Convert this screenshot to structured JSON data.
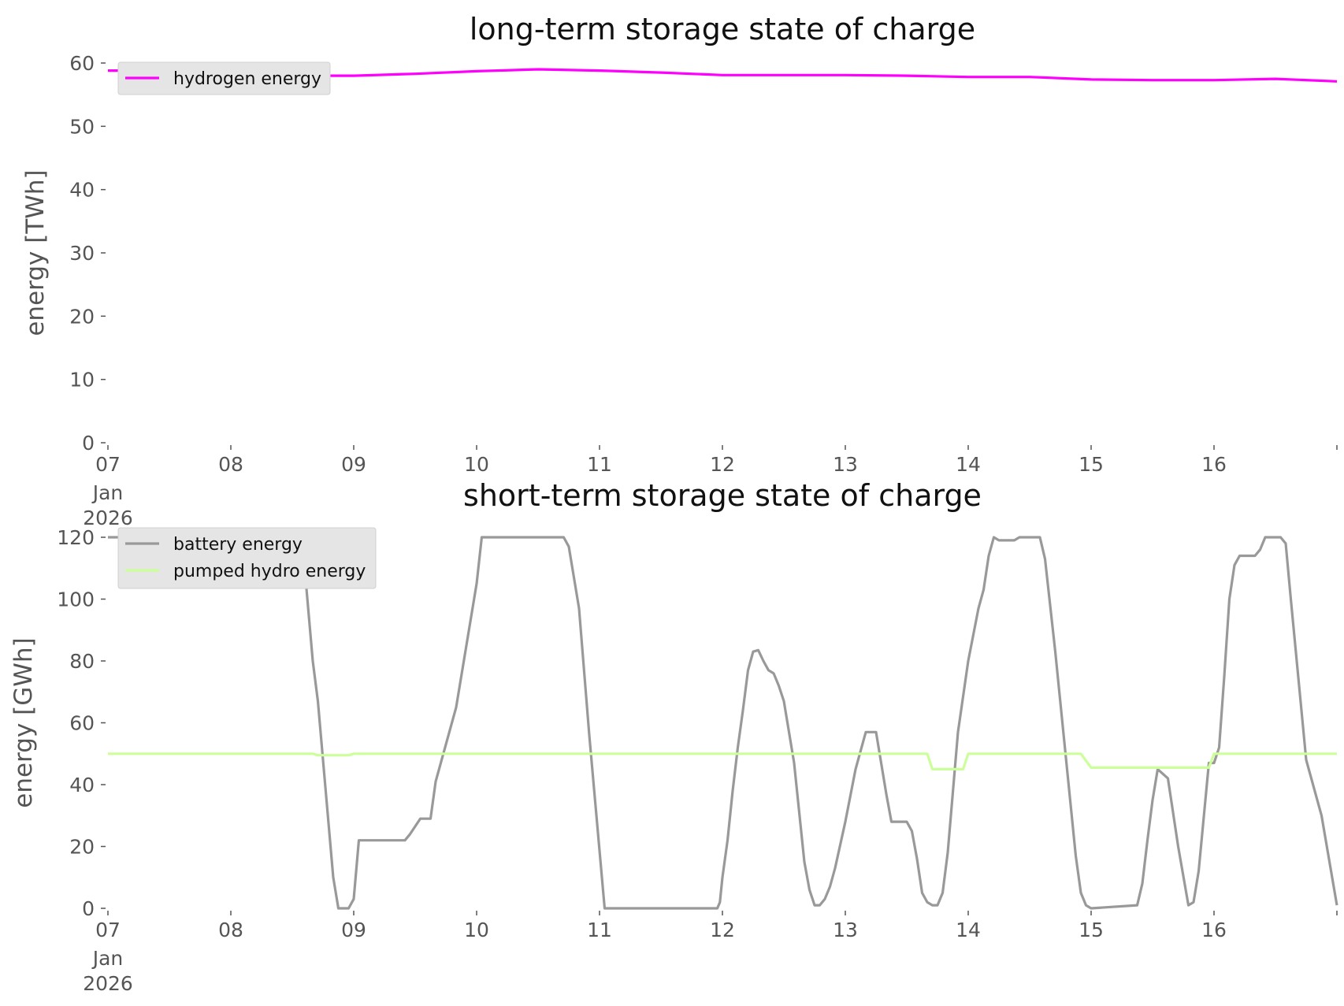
{
  "chart_data": [
    {
      "type": "line",
      "title": "long-term storage state of charge",
      "xlabel": "",
      "ylabel": "energy [TWh]",
      "ylim": [
        0,
        60
      ],
      "yticks": [
        0,
        10,
        20,
        30,
        40,
        50,
        60
      ],
      "xlim": [
        "2026-01-07",
        "2026-01-17"
      ],
      "xticks": [
        {
          "date": "2026-01-07",
          "label": "07",
          "sub": [
            "Jan",
            "2026"
          ]
        },
        {
          "date": "2026-01-08",
          "label": "08"
        },
        {
          "date": "2026-01-09",
          "label": "09"
        },
        {
          "date": "2026-01-10",
          "label": "10"
        },
        {
          "date": "2026-01-11",
          "label": "11"
        },
        {
          "date": "2026-01-12",
          "label": "12"
        },
        {
          "date": "2026-01-13",
          "label": "13"
        },
        {
          "date": "2026-01-14",
          "label": "14"
        },
        {
          "date": "2026-01-15",
          "label": "15"
        },
        {
          "date": "2026-01-16",
          "label": "16"
        },
        {
          "date": "2026-01-17",
          "label": ""
        }
      ],
      "grid": false,
      "legend_position": "top-left",
      "series": [
        {
          "name": "hydrogen energy",
          "color": "#ff00ff",
          "points": [
            [
              "2026-01-07T00:00",
              58.8
            ],
            [
              "2026-01-07T12:00",
              58.8
            ],
            [
              "2026-01-08T00:00",
              58.9
            ],
            [
              "2026-01-08T12:00",
              58.7
            ],
            [
              "2026-01-08T18:00",
              58.0
            ],
            [
              "2026-01-09T00:00",
              58.0
            ],
            [
              "2026-01-09T12:00",
              58.3
            ],
            [
              "2026-01-10T00:00",
              58.7
            ],
            [
              "2026-01-10T12:00",
              59.0
            ],
            [
              "2026-01-11T00:00",
              58.8
            ],
            [
              "2026-01-11T12:00",
              58.5
            ],
            [
              "2026-01-12T00:00",
              58.1
            ],
            [
              "2026-01-12T12:00",
              58.1
            ],
            [
              "2026-01-13T00:00",
              58.1
            ],
            [
              "2026-01-13T12:00",
              58.0
            ],
            [
              "2026-01-14T00:00",
              57.8
            ],
            [
              "2026-01-14T12:00",
              57.8
            ],
            [
              "2026-01-15T00:00",
              57.4
            ],
            [
              "2026-01-15T12:00",
              57.3
            ],
            [
              "2026-01-16T00:00",
              57.3
            ],
            [
              "2026-01-16T12:00",
              57.5
            ],
            [
              "2026-01-17T00:00",
              57.1
            ]
          ]
        }
      ]
    },
    {
      "type": "line",
      "title": "short-term storage state of charge",
      "xlabel": "",
      "ylabel": "energy [GWh]",
      "ylim": [
        0,
        120
      ],
      "yticks": [
        0,
        20,
        40,
        60,
        80,
        100,
        120
      ],
      "xlim": [
        "2026-01-07",
        "2026-01-17"
      ],
      "xticks": [
        {
          "date": "2026-01-07",
          "label": "07",
          "sub": [
            "Jan",
            "2026"
          ]
        },
        {
          "date": "2026-01-08",
          "label": "08"
        },
        {
          "date": "2026-01-09",
          "label": "09"
        },
        {
          "date": "2026-01-10",
          "label": "10"
        },
        {
          "date": "2026-01-11",
          "label": "11"
        },
        {
          "date": "2026-01-12",
          "label": "12"
        },
        {
          "date": "2026-01-13",
          "label": "13"
        },
        {
          "date": "2026-01-14",
          "label": "14"
        },
        {
          "date": "2026-01-15",
          "label": "15"
        },
        {
          "date": "2026-01-16",
          "label": "16"
        },
        {
          "date": "2026-01-17",
          "label": ""
        }
      ],
      "grid": false,
      "legend_position": "top-left",
      "series": [
        {
          "name": "battery energy",
          "color": "#999999",
          "points": [
            [
              "2026-01-07T00:00",
              120
            ],
            [
              "2026-01-08T12:00",
              120
            ],
            [
              "2026-01-08T14:00",
              118
            ],
            [
              "2026-01-08T16:00",
              80
            ],
            [
              "2026-01-08T17:00",
              67
            ],
            [
              "2026-01-08T20:00",
              10
            ],
            [
              "2026-01-08T21:00",
              0
            ],
            [
              "2026-01-08T23:00",
              0
            ],
            [
              "2026-01-09T00:00",
              3
            ],
            [
              "2026-01-09T01:00",
              22
            ],
            [
              "2026-01-09T10:00",
              22
            ],
            [
              "2026-01-09T11:00",
              24
            ],
            [
              "2026-01-09T13:00",
              29
            ],
            [
              "2026-01-09T15:00",
              29
            ],
            [
              "2026-01-09T16:00",
              41
            ],
            [
              "2026-01-09T20:00",
              65
            ],
            [
              "2026-01-10T00:00",
              105
            ],
            [
              "2026-01-10T01:00",
              120
            ],
            [
              "2026-01-10T17:00",
              120
            ],
            [
              "2026-01-10T18:00",
              117
            ],
            [
              "2026-01-10T20:00",
              97
            ],
            [
              "2026-01-10T22:00",
              56
            ],
            [
              "2026-01-11T01:00",
              0
            ],
            [
              "2026-01-11T23:00",
              0
            ],
            [
              "2026-01-11T23:30",
              2
            ],
            [
              "2026-01-12T00:00",
              10
            ],
            [
              "2026-01-12T01:00",
              22
            ],
            [
              "2026-01-12T02:00",
              38
            ],
            [
              "2026-01-12T03:00",
              52
            ],
            [
              "2026-01-12T04:00",
              64
            ],
            [
              "2026-01-12T05:00",
              77
            ],
            [
              "2026-01-12T06:00",
              83
            ],
            [
              "2026-01-12T07:00",
              83.5
            ],
            [
              "2026-01-12T08:00",
              80
            ],
            [
              "2026-01-12T09:00",
              77
            ],
            [
              "2026-01-12T10:00",
              76
            ],
            [
              "2026-01-12T11:00",
              72
            ],
            [
              "2026-01-12T12:00",
              67
            ],
            [
              "2026-01-12T14:00",
              47
            ],
            [
              "2026-01-12T16:00",
              15
            ],
            [
              "2026-01-12T17:00",
              6
            ],
            [
              "2026-01-12T18:00",
              1
            ],
            [
              "2026-01-12T19:00",
              1
            ],
            [
              "2026-01-12T20:00",
              3
            ],
            [
              "2026-01-12T21:00",
              7
            ],
            [
              "2026-01-12T22:00",
              13
            ],
            [
              "2026-01-13T00:00",
              28
            ],
            [
              "2026-01-13T02:00",
              45
            ],
            [
              "2026-01-13T04:00",
              57
            ],
            [
              "2026-01-13T06:00",
              57
            ],
            [
              "2026-01-13T08:00",
              37
            ],
            [
              "2026-01-13T09:00",
              28
            ],
            [
              "2026-01-13T12:00",
              28
            ],
            [
              "2026-01-13T13:00",
              25
            ],
            [
              "2026-01-13T14:00",
              16
            ],
            [
              "2026-01-13T15:00",
              5
            ],
            [
              "2026-01-13T16:00",
              2
            ],
            [
              "2026-01-13T17:00",
              1
            ],
            [
              "2026-01-13T18:00",
              1
            ],
            [
              "2026-01-13T19:00",
              5
            ],
            [
              "2026-01-13T20:00",
              18
            ],
            [
              "2026-01-13T22:00",
              57
            ],
            [
              "2026-01-14T00:00",
              80
            ],
            [
              "2026-01-14T02:00",
              97
            ],
            [
              "2026-01-14T03:00",
              103
            ],
            [
              "2026-01-14T04:00",
              114
            ],
            [
              "2026-01-14T05:00",
              120
            ],
            [
              "2026-01-14T06:00",
              119
            ],
            [
              "2026-01-14T09:00",
              119
            ],
            [
              "2026-01-14T10:00",
              120
            ],
            [
              "2026-01-14T14:00",
              120
            ],
            [
              "2026-01-14T15:00",
              113
            ],
            [
              "2026-01-14T17:00",
              83
            ],
            [
              "2026-01-14T19:00",
              50
            ],
            [
              "2026-01-14T21:00",
              17
            ],
            [
              "2026-01-14T22:00",
              5
            ],
            [
              "2026-01-14T23:00",
              1
            ],
            [
              "2026-01-15T00:00",
              0
            ],
            [
              "2026-01-15T09:00",
              1
            ],
            [
              "2026-01-15T10:00",
              8
            ],
            [
              "2026-01-15T11:00",
              22
            ],
            [
              "2026-01-15T12:00",
              35
            ],
            [
              "2026-01-15T13:00",
              45
            ],
            [
              "2026-01-15T15:00",
              42
            ],
            [
              "2026-01-15T17:00",
              20
            ],
            [
              "2026-01-15T19:00",
              1
            ],
            [
              "2026-01-15T20:00",
              2
            ],
            [
              "2026-01-15T21:00",
              12
            ],
            [
              "2026-01-15T23:00",
              47
            ],
            [
              "2026-01-16T00:00",
              47
            ],
            [
              "2026-01-16T01:00",
              52
            ],
            [
              "2026-01-16T02:00",
              75
            ],
            [
              "2026-01-16T03:00",
              100
            ],
            [
              "2026-01-16T04:00",
              111
            ],
            [
              "2026-01-16T05:00",
              114
            ],
            [
              "2026-01-16T08:00",
              114
            ],
            [
              "2026-01-16T09:00",
              116
            ],
            [
              "2026-01-16T10:00",
              120
            ],
            [
              "2026-01-16T13:00",
              120
            ],
            [
              "2026-01-16T14:00",
              118
            ],
            [
              "2026-01-16T15:00",
              100
            ],
            [
              "2026-01-16T18:00",
              48
            ],
            [
              "2026-01-16T21:00",
              30
            ],
            [
              "2026-01-17T00:00",
              1
            ]
          ]
        },
        {
          "name": "pumped hydro energy",
          "color": "#ccff99",
          "points": [
            [
              "2026-01-07T00:00",
              50
            ],
            [
              "2026-01-08T16:00",
              50
            ],
            [
              "2026-01-08T17:00",
              49.5
            ],
            [
              "2026-01-08T23:00",
              49.5
            ],
            [
              "2026-01-09T00:00",
              50
            ],
            [
              "2026-01-13T16:00",
              50
            ],
            [
              "2026-01-13T17:00",
              45
            ],
            [
              "2026-01-13T23:00",
              45
            ],
            [
              "2026-01-14T00:00",
              50
            ],
            [
              "2026-01-14T22:00",
              50
            ],
            [
              "2026-01-15T00:00",
              45.5
            ],
            [
              "2026-01-15T23:00",
              45.5
            ],
            [
              "2026-01-16T00:00",
              50
            ],
            [
              "2026-01-17T00:00",
              50
            ]
          ]
        }
      ]
    }
  ]
}
